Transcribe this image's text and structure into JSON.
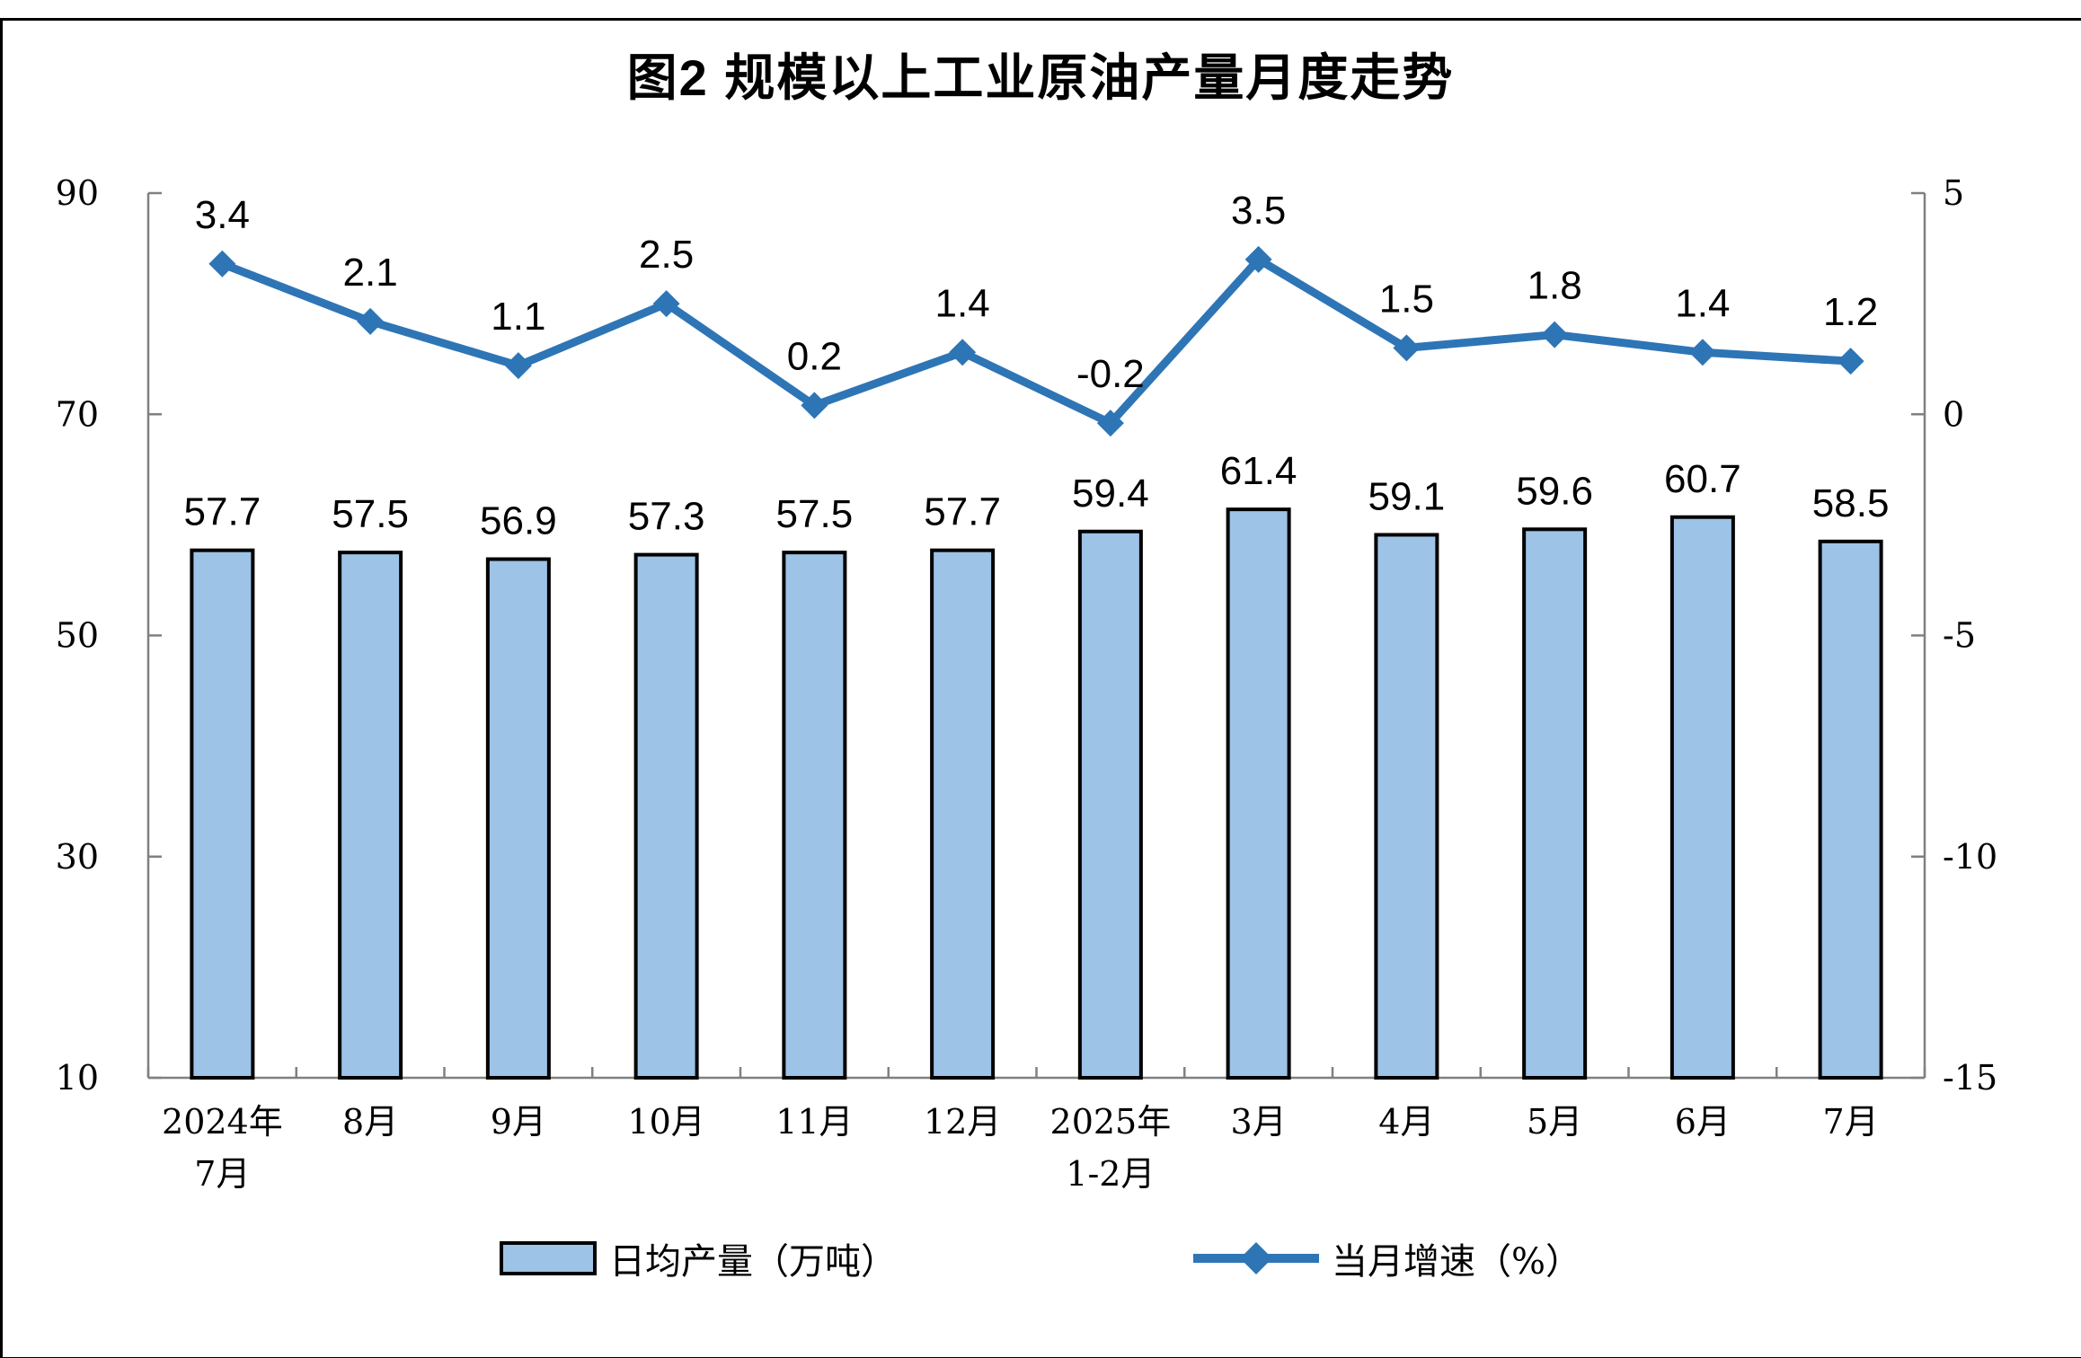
{
  "page": {
    "title": "图2 规模以上工业原油产量月度走势"
  },
  "chart_data": {
    "type": "combo-bar-line",
    "title": "图2 规模以上工业原油产量月度走势",
    "categories": [
      [
        "2024年",
        "7月"
      ],
      [
        "8月"
      ],
      [
        "9月"
      ],
      [
        "10月"
      ],
      [
        "11月"
      ],
      [
        "12月"
      ],
      [
        "2025年",
        "1-2月"
      ],
      [
        "3月"
      ],
      [
        "4月"
      ],
      [
        "5月"
      ],
      [
        "6月"
      ],
      [
        "7月"
      ]
    ],
    "series": [
      {
        "name": "日均产量（万吨）",
        "type": "bar",
        "axis": "left",
        "values": [
          57.7,
          57.5,
          56.9,
          57.3,
          57.5,
          57.7,
          59.4,
          61.4,
          59.1,
          59.6,
          60.7,
          58.5
        ],
        "fill": "#9DC3E6",
        "border": "#000000"
      },
      {
        "name": "当月增速（%）",
        "type": "line",
        "axis": "right",
        "values": [
          3.4,
          2.1,
          1.1,
          2.5,
          0.2,
          1.4,
          -0.2,
          3.5,
          1.5,
          1.8,
          1.4,
          1.2
        ],
        "color": "#2E75B6",
        "marker": "diamond"
      }
    ],
    "left_axis": {
      "min": 10,
      "max": 90,
      "ticks": [
        90,
        70,
        50,
        30,
        10
      ]
    },
    "right_axis": {
      "min": -15,
      "max": 5,
      "ticks": [
        5,
        0,
        -5,
        -10,
        -15
      ]
    },
    "xlabel": "",
    "ylabel_left": "",
    "ylabel_right": "",
    "grid": false,
    "data_labels": true,
    "legend_position": "bottom",
    "axis_color": "#808080",
    "text_color": "#000000"
  }
}
